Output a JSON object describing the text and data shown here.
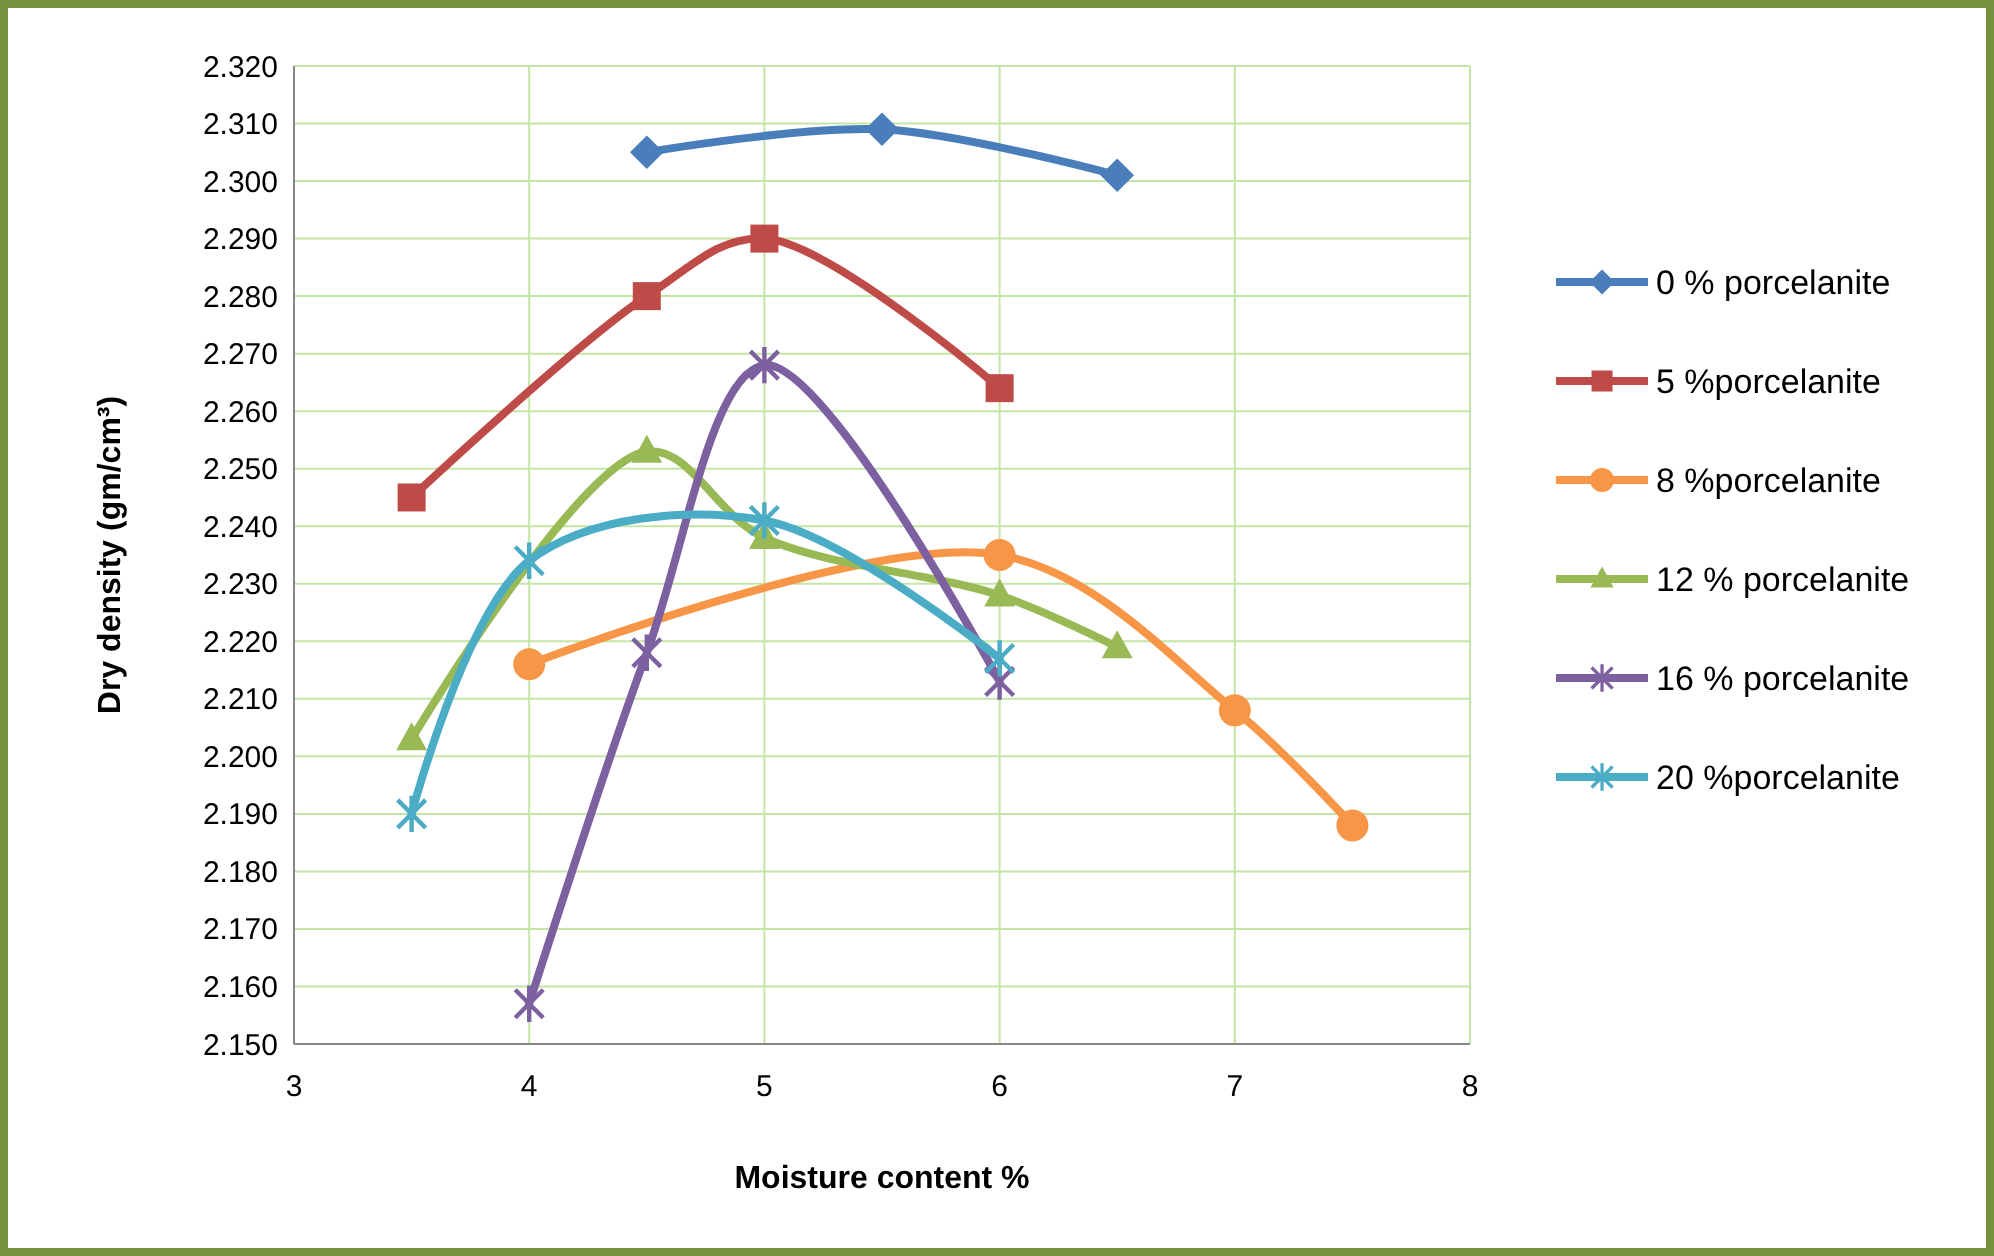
{
  "chart_data": {
    "type": "line",
    "xlabel": "Moisture content %",
    "ylabel": "Dry  density (gm/cm³)",
    "xlim": [
      3,
      8
    ],
    "xticks": [
      3,
      4,
      5,
      6,
      7,
      8
    ],
    "ylim": [
      2.15,
      2.32
    ],
    "yticks": [
      {
        "value": 2.15,
        "label": "2.150"
      },
      {
        "value": 2.16,
        "label": "2.160"
      },
      {
        "value": 2.17,
        "label": "2.170"
      },
      {
        "value": 2.18,
        "label": "2.180"
      },
      {
        "value": 2.19,
        "label": "2.190"
      },
      {
        "value": 2.2,
        "label": "2.200"
      },
      {
        "value": 2.21,
        "label": "2.210"
      },
      {
        "value": 2.22,
        "label": "2.220"
      },
      {
        "value": 2.23,
        "label": "2.230"
      },
      {
        "value": 2.24,
        "label": "2.240"
      },
      {
        "value": 2.25,
        "label": "2.250"
      },
      {
        "value": 2.26,
        "label": "2.260"
      },
      {
        "value": 2.27,
        "label": "2.270"
      },
      {
        "value": 2.28,
        "label": "2.280"
      },
      {
        "value": 2.29,
        "label": "2.290"
      },
      {
        "value": 2.3,
        "label": "2.300"
      },
      {
        "value": 2.31,
        "label": "2.310"
      },
      {
        "value": 2.32,
        "label": "2.320"
      }
    ],
    "grid": true,
    "legend": "right",
    "series": [
      {
        "name": "0 % porcelanite",
        "color": "#4a7ebb",
        "marker": "diamond",
        "x": [
          4.5,
          5.5,
          6.5
        ],
        "values": [
          2.305,
          2.309,
          2.301
        ]
      },
      {
        "name": "5 %porcelanite",
        "color": "#be4b48",
        "marker": "square",
        "x": [
          3.5,
          4.5,
          5,
          6
        ],
        "values": [
          2.245,
          2.28,
          2.29,
          2.264
        ]
      },
      {
        "name": "8 %porcelanite",
        "color": "#f79646",
        "marker": "circle",
        "x": [
          4,
          5,
          6,
          7,
          7.5
        ],
        "values": [
          2.216,
          null,
          2.235,
          2.208,
          2.188
        ]
      },
      {
        "name": "12 % porcelanite",
        "color": "#98b954",
        "marker": "triangle",
        "x": [
          3.5,
          4.5,
          5,
          6,
          6.5
        ],
        "values": [
          2.203,
          2.253,
          2.238,
          2.228,
          2.219
        ]
      },
      {
        "name": "16 % porcelanite",
        "color": "#7d60a0",
        "marker": "cross",
        "x": [
          4,
          4.5,
          5,
          6
        ],
        "values": [
          2.157,
          2.218,
          2.268,
          2.213
        ]
      },
      {
        "name": "20 %porcelanite",
        "color": "#4bacc6",
        "marker": "cross",
        "x": [
          3.5,
          4,
          5,
          6
        ],
        "values": [
          2.19,
          2.234,
          2.241,
          2.217
        ]
      }
    ]
  }
}
